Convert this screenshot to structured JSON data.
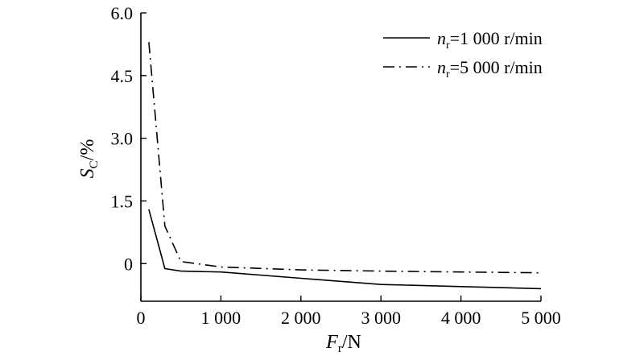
{
  "chart_data": {
    "type": "line",
    "xlabel": {
      "main": "F",
      "sub": "r",
      "unit": "/N"
    },
    "ylabel": {
      "main": "S",
      "sub": "C",
      "unit": "/%"
    },
    "xlim": [
      0,
      5000
    ],
    "ylim": [
      -0.9,
      6.0
    ],
    "xticks": [
      {
        "value": 0,
        "label": "0"
      },
      {
        "value": 1000,
        "label": "1 000"
      },
      {
        "value": 2000,
        "label": "2 000"
      },
      {
        "value": 3000,
        "label": "3 000"
      },
      {
        "value": 4000,
        "label": "4 000"
      },
      {
        "value": 5000,
        "label": "5 000"
      }
    ],
    "yticks": [
      {
        "value": 0,
        "label": "0"
      },
      {
        "value": 1.5,
        "label": "1.5"
      },
      {
        "value": 3.0,
        "label": "3.0"
      },
      {
        "value": 4.5,
        "label": "4.5"
      },
      {
        "value": 6.0,
        "label": "6.0"
      }
    ],
    "grid": false,
    "legend_position": "top-right",
    "series": [
      {
        "name": {
          "main": "n",
          "sub": "r",
          "rest": "=1 000 r/min"
        },
        "style": "solid",
        "x": [
          100,
          300,
          500,
          1000,
          2000,
          3000,
          4000,
          5000
        ],
        "y": [
          1.3,
          -0.12,
          -0.18,
          -0.2,
          -0.35,
          -0.5,
          -0.55,
          -0.6
        ]
      },
      {
        "name": {
          "main": "n",
          "sub": "r",
          "rest": "=5 000 r/min"
        },
        "style": "dash-dot",
        "x": [
          100,
          300,
          500,
          1000,
          2000,
          3000,
          4000,
          5000
        ],
        "y": [
          5.3,
          0.9,
          0.05,
          -0.08,
          -0.15,
          -0.18,
          -0.2,
          -0.22
        ]
      }
    ]
  }
}
